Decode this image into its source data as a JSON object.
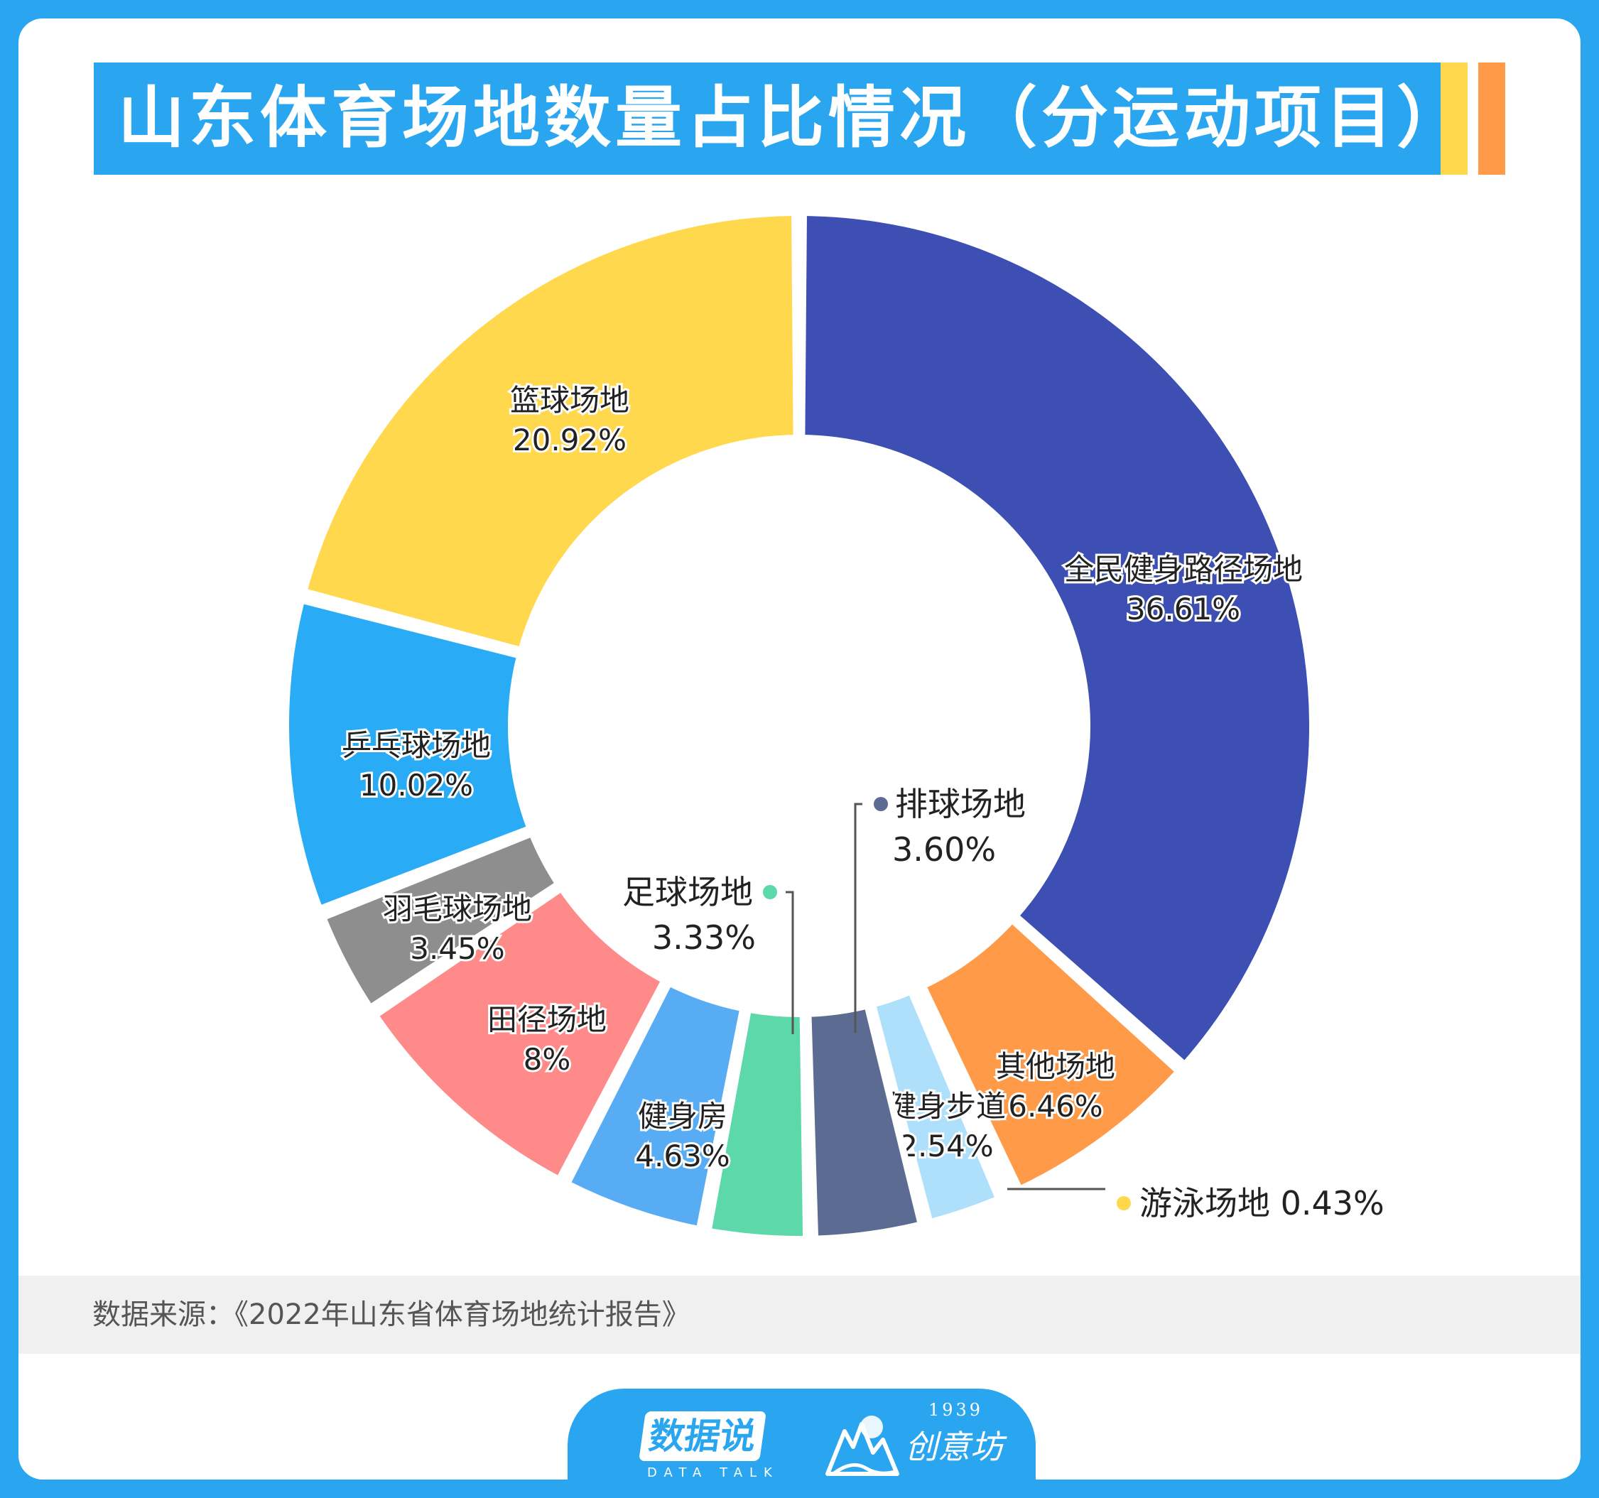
{
  "title": "山东体育场地数量占比情况（分运动项目）",
  "source": "数据来源：《2022年山东省体育场地统计报告》",
  "brand": {
    "name": "数据说",
    "sub": "DATA TALK",
    "partner_year": "1939",
    "partner_name": "创意坊",
    "partner_logo": "mountain-wave-logo"
  },
  "colors": {
    "page_border": "#2aa6f0",
    "title_bar": "#2aa6f0",
    "deco_yellow": "#ffd84e",
    "deco_orange": "#ff9a48"
  },
  "chart_data": {
    "type": "pie",
    "variant": "donut",
    "unit": "%",
    "slices": [
      {
        "label": "全民健身路径场地",
        "value": 36.61,
        "value_text": "36.61%",
        "color": "#3d4fb3"
      },
      {
        "label": "其他场地",
        "value": 6.46,
        "value_text": "6.46%",
        "color": "#ff9a48"
      },
      {
        "label": "游泳场地",
        "value": 0.43,
        "value_text": "0.43%",
        "color": "#ffd84e"
      },
      {
        "label": "健身步道",
        "value": 2.54,
        "value_text": "2.54%",
        "color": "#aee0fb"
      },
      {
        "label": "排球场地",
        "value": 3.6,
        "value_text": "3.60%",
        "color": "#5b6b92"
      },
      {
        "label": "足球场地",
        "value": 3.33,
        "value_text": "3.33%",
        "color": "#5dd8ab"
      },
      {
        "label": "健身房",
        "value": 4.63,
        "value_text": "4.63%",
        "color": "#58acf4"
      },
      {
        "label": "田径场地",
        "value": 8,
        "value_text": "8%",
        "color": "#ff8a8a"
      },
      {
        "label": "羽毛球场地",
        "value": 3.45,
        "value_text": "3.45%",
        "color": "#8e8e8e"
      },
      {
        "label": "乒乓球场地",
        "value": 10.02,
        "value_text": "10.02%",
        "color": "#2aabf5"
      },
      {
        "label": "篮球场地",
        "value": 20.92,
        "value_text": "20.92%",
        "color": "#ffd84e"
      }
    ]
  }
}
